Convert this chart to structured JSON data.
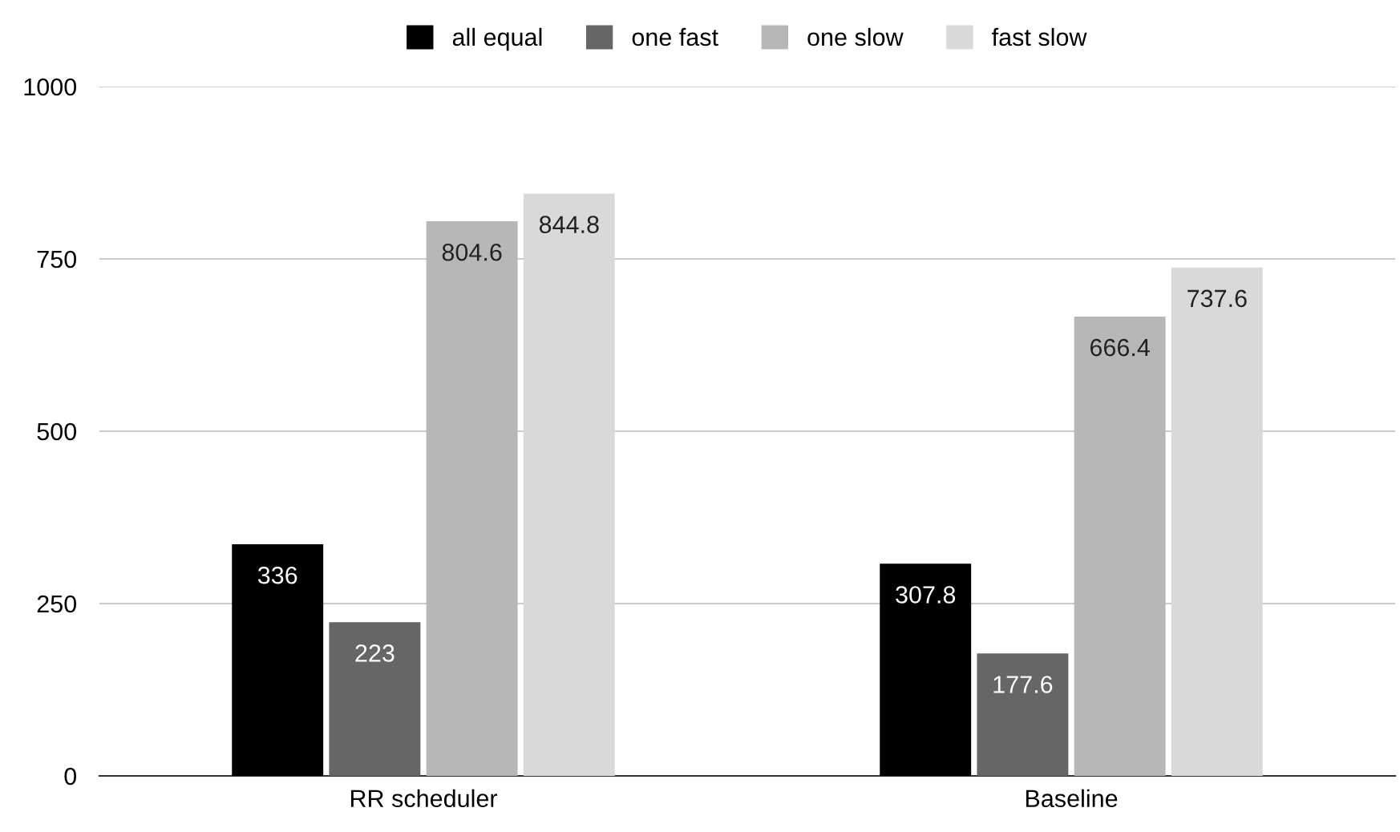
{
  "chart_data": {
    "type": "bar",
    "categories": [
      "RR scheduler",
      "Baseline"
    ],
    "series": [
      {
        "name": "all equal",
        "color": "#000000",
        "values": [
          336,
          307.8
        ]
      },
      {
        "name": "one fast",
        "color": "#666666",
        "values": [
          223,
          177.6
        ]
      },
      {
        "name": "one slow",
        "color": "#b7b7b7",
        "values": [
          804.6,
          666.4
        ]
      },
      {
        "name": "fast slow",
        "color": "#d9d9d9",
        "values": [
          844.8,
          737.6
        ]
      }
    ],
    "ylim": [
      0,
      1000
    ],
    "yticks": [
      0,
      250,
      500,
      750,
      1000
    ],
    "grid": "y",
    "legend": "top",
    "data_labels": true
  }
}
